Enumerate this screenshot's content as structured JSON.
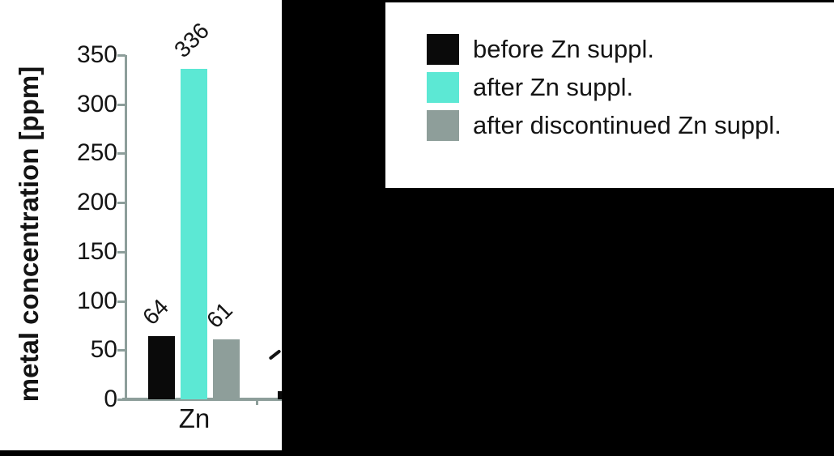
{
  "colors": {
    "background": "#000000",
    "panel": "#ffffff",
    "axis": "#8d9e9a",
    "text": "#141414",
    "series_black": "#0a0a0a",
    "series_teal": "#5ce8d4",
    "series_gray": "#8e9e9a"
  },
  "y_axis": {
    "title": "metal concentration [ppm]",
    "ticks": [
      0,
      50,
      100,
      150,
      200,
      250,
      300,
      350
    ]
  },
  "legend": {
    "items": [
      {
        "label": "before Zn suppl.",
        "color_key": "series_black"
      },
      {
        "label": "after Zn suppl.",
        "color_key": "series_teal"
      },
      {
        "label": "after discontinued Zn suppl.",
        "color_key": "series_gray"
      }
    ]
  },
  "chart_data": {
    "type": "bar",
    "title": "",
    "xlabel": "",
    "ylabel": "metal concentration [ppm]",
    "categories": [
      "Zn"
    ],
    "series": [
      {
        "name": "before Zn suppl.",
        "color_key": "series_black",
        "values": [
          64
        ]
      },
      {
        "name": "after Zn suppl.",
        "color_key": "series_teal",
        "values": [
          336
        ]
      },
      {
        "name": "after discontinued Zn suppl.",
        "color_key": "series_gray",
        "values": [
          61
        ]
      }
    ],
    "data_labels_shown": true,
    "ylim": [
      0,
      350
    ],
    "grid": false,
    "legend_position": "outside-top-right",
    "partial_next_group": {
      "visible": true,
      "bar_color_key": "series_black",
      "label_legible": false
    }
  }
}
